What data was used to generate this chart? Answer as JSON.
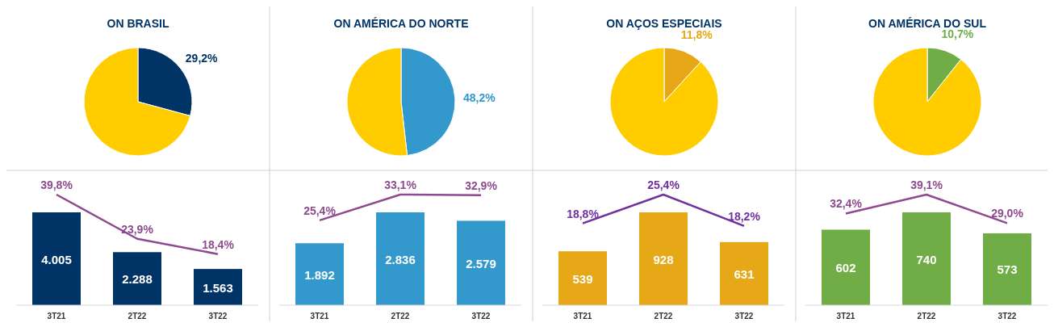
{
  "chart_data": [
    {
      "type": "pie",
      "title": "ON BRASIL",
      "categories": [
        null,
        null
      ],
      "values": [
        29.2,
        70.8
      ],
      "colors": [
        "#003366",
        "#ffcc00"
      ],
      "value_labels": [
        "29,2%",
        null
      ]
    },
    {
      "type": "pie",
      "title": "ON AMÉRICA DO NORTE",
      "categories": [
        null,
        null
      ],
      "values": [
        48.2,
        51.8
      ],
      "colors": [
        "#3399cc",
        "#ffcc00"
      ],
      "value_labels": [
        "48,2%",
        null
      ]
    },
    {
      "type": "pie",
      "title": "ON AÇOS ESPECIAIS",
      "categories": [
        null,
        null
      ],
      "values": [
        11.8,
        88.2
      ],
      "colors": [
        "#e6a817",
        "#ffcc00"
      ],
      "value_labels": [
        "11,8%",
        null
      ]
    },
    {
      "type": "pie",
      "title": "ON AMÉRICA DO SUL",
      "categories": [
        null,
        null
      ],
      "values": [
        10.7,
        89.3
      ],
      "colors": [
        "#70ad47",
        "#ffcc00"
      ],
      "value_labels": [
        "10,7%",
        null
      ]
    },
    {
      "type": "bar",
      "categories": [
        "3T21",
        "2T22",
        "3T22"
      ],
      "series": [
        {
          "type": "bar",
          "color": "#003366",
          "values": [
            4005,
            2288,
            1563
          ],
          "value_labels": [
            "4.005",
            "2.288",
            "1.563"
          ]
        },
        {
          "type": "line",
          "axis": "y2",
          "color": "#8e4a8e",
          "values": [
            39.8,
            23.9,
            18.4
          ],
          "value_labels": [
            "39,8%",
            "23,9%",
            "18,4%"
          ]
        }
      ]
    },
    {
      "type": "bar",
      "categories": [
        "3T21",
        "2T22",
        "3T22"
      ],
      "series": [
        {
          "type": "bar",
          "color": "#3399cc",
          "values": [
            1892,
            2836,
            2579
          ],
          "value_labels": [
            "1.892",
            "2.836",
            "2.579"
          ]
        },
        {
          "type": "line",
          "axis": "y2",
          "color": "#8e4a8e",
          "values": [
            25.4,
            33.1,
            32.9
          ],
          "value_labels": [
            "25,4%",
            "33,1%",
            "32,9%"
          ]
        }
      ]
    },
    {
      "type": "bar",
      "categories": [
        "3T21",
        "2T22",
        "3T22"
      ],
      "series": [
        {
          "type": "bar",
          "color": "#e6a817",
          "values": [
            539,
            928,
            631
          ],
          "value_labels": [
            "539",
            "928",
            "631"
          ]
        },
        {
          "type": "line",
          "axis": "y2",
          "color": "#7030a0",
          "values": [
            18.8,
            25.4,
            18.2
          ],
          "value_labels": [
            "18,8%",
            "25,4%",
            "18,2%"
          ]
        }
      ]
    },
    {
      "type": "bar",
      "categories": [
        "3T21",
        "2T22",
        "3T22"
      ],
      "series": [
        {
          "type": "bar",
          "color": "#70ad47",
          "values": [
            602,
            740,
            573
          ],
          "value_labels": [
            "602",
            "740",
            "573"
          ]
        },
        {
          "type": "line",
          "axis": "y2",
          "color": "#8e4a8e",
          "values": [
            32.4,
            39.1,
            29.0
          ],
          "value_labels": [
            "32,4%",
            "39,1%",
            "29,0%"
          ]
        }
      ]
    }
  ]
}
